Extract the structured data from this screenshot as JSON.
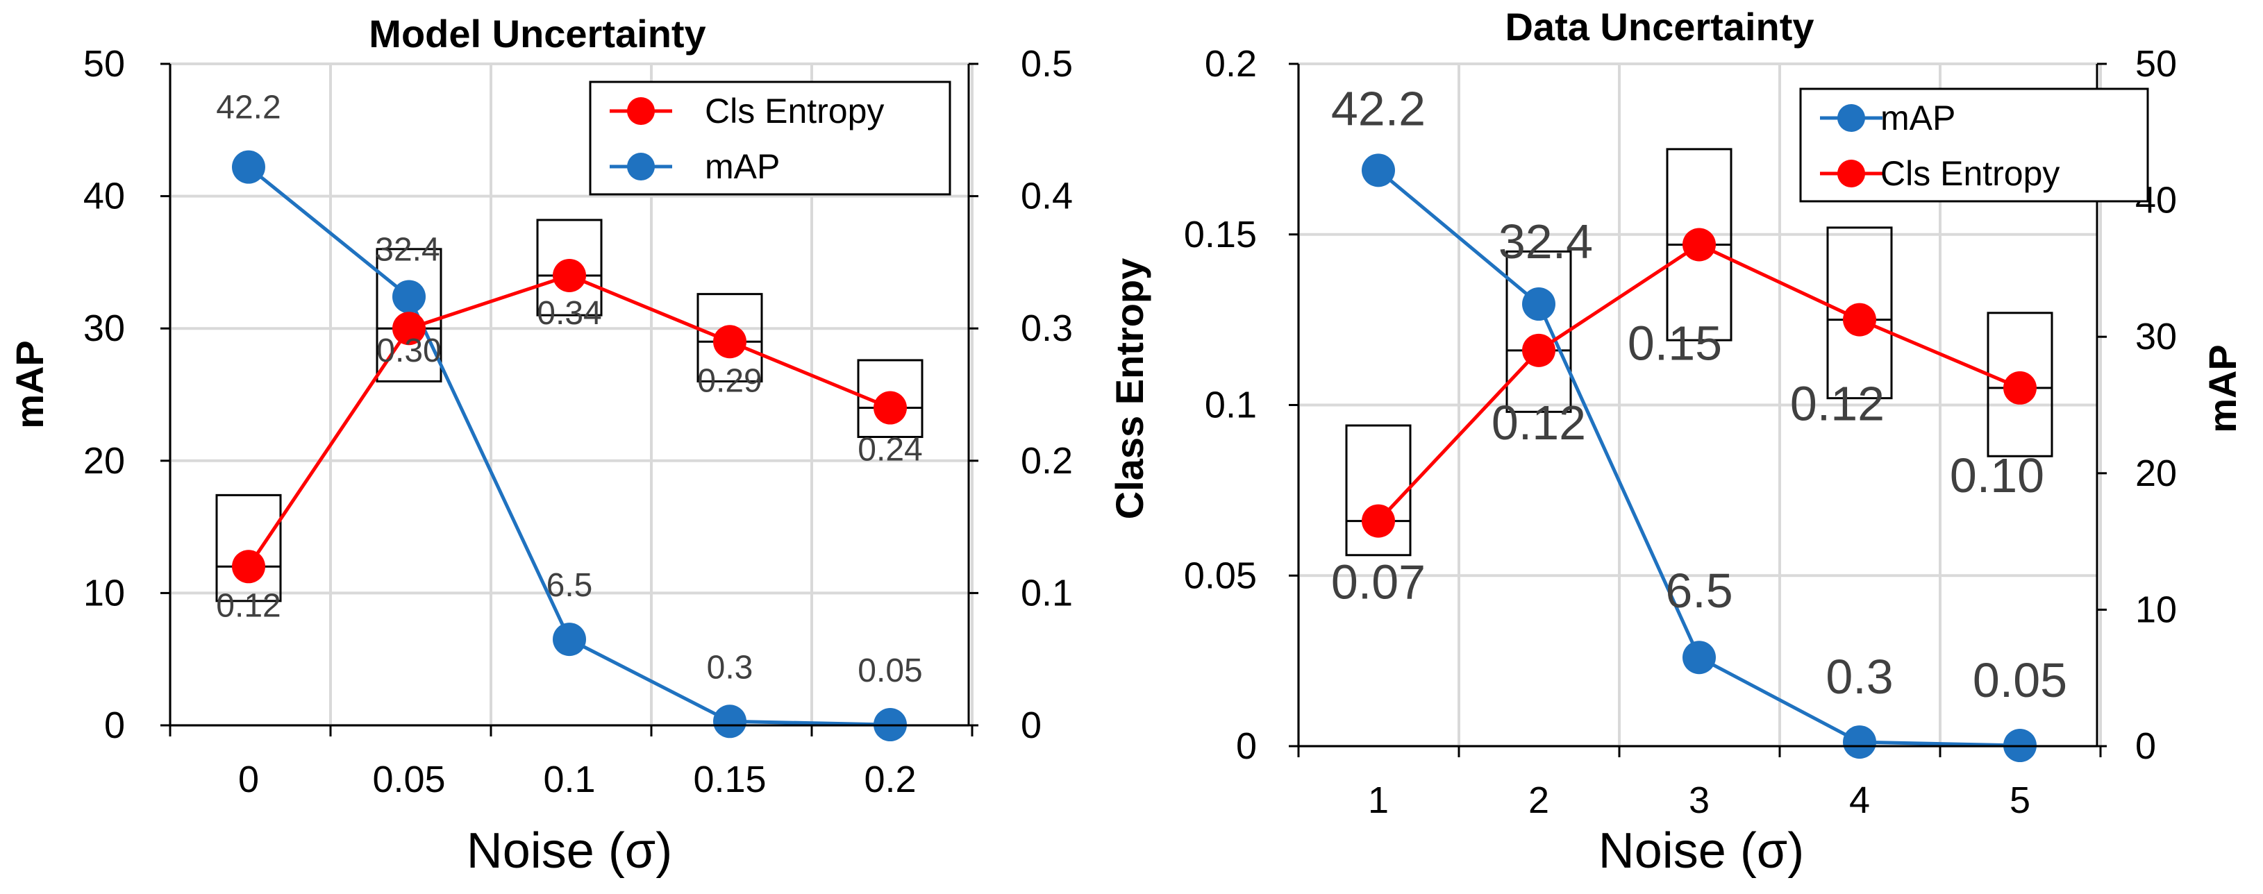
{
  "colors": {
    "map": "#1f72c0",
    "entropy": "#ff0000",
    "grid": "#d9d9d9",
    "axis": "#000000",
    "label": "#404040"
  },
  "chart_data": [
    {
      "type": "line",
      "title": "Model Uncertainty",
      "xlabel": "Noise (σ)",
      "ylabel_left": "mAP",
      "ylabel_right": "",
      "categories": [
        "0",
        "0.05",
        "0.1",
        "0.15",
        "0.2"
      ],
      "left_axis": {
        "series": "mAP",
        "ylim": [
          0,
          50
        ],
        "ticks": [
          "0",
          "10",
          "20",
          "30",
          "40",
          "50"
        ]
      },
      "right_axis": {
        "series": "Cls Entropy",
        "ylim": [
          0,
          0.5
        ],
        "ticks": [
          "0",
          "0.1",
          "0.2",
          "0.3",
          "0.4",
          "0.5"
        ]
      },
      "series": [
        {
          "name": "mAP",
          "axis": "left",
          "values": [
            42.2,
            32.4,
            6.5,
            0.3,
            0.05
          ],
          "labels": [
            "42.2",
            "32.4",
            "6.5",
            "0.3",
            "0.05"
          ]
        },
        {
          "name": "Cls Entropy",
          "axis": "right",
          "values": [
            0.12,
            0.3,
            0.34,
            0.29,
            0.24
          ],
          "labels": [
            "0.12",
            "0.30",
            "0.34",
            "0.29",
            "0.24"
          ],
          "boxes": [
            [
              0.094,
              0.174
            ],
            [
              0.26,
              0.36
            ],
            [
              0.31,
              0.382
            ],
            [
              0.26,
              0.326
            ],
            [
              0.218,
              0.276
            ]
          ]
        }
      ],
      "legend": [
        "Cls Entropy",
        "mAP"
      ],
      "legend_position": "top-right"
    },
    {
      "type": "line",
      "title": "Data Uncertainty",
      "xlabel": "Noise (σ)",
      "ylabel_left": "Class Entropy",
      "ylabel_right": "mAP",
      "categories": [
        "1",
        "2",
        "3",
        "4",
        "5"
      ],
      "left_axis": {
        "series": "Cls Entropy",
        "ylim": [
          0,
          0.2
        ],
        "ticks": [
          "0",
          "0.05",
          "0.1",
          "0.15",
          "0.2"
        ]
      },
      "right_axis": {
        "series": "mAP",
        "ylim": [
          0,
          50
        ],
        "ticks": [
          "0",
          "10",
          "20",
          "30",
          "40",
          "50"
        ]
      },
      "series": [
        {
          "name": "mAP",
          "axis": "right",
          "values": [
            42.2,
            32.4,
            6.5,
            0.3,
            0.05
          ],
          "labels": [
            "42.2",
            "32.4",
            "6.5",
            "0.3",
            "0.05"
          ]
        },
        {
          "name": "Cls Entropy",
          "axis": "left",
          "values": [
            0.066,
            0.116,
            0.147,
            0.125,
            0.105
          ],
          "labels": [
            "0.07",
            "0.12",
            "0.15",
            "0.12",
            "0.10"
          ],
          "boxes": [
            [
              0.056,
              0.094
            ],
            [
              0.098,
              0.145
            ],
            [
              0.119,
              0.175
            ],
            [
              0.102,
              0.152
            ],
            [
              0.085,
              0.127
            ]
          ]
        }
      ],
      "legend": [
        "mAP",
        "Cls Entropy"
      ],
      "legend_position": "top-right"
    }
  ]
}
